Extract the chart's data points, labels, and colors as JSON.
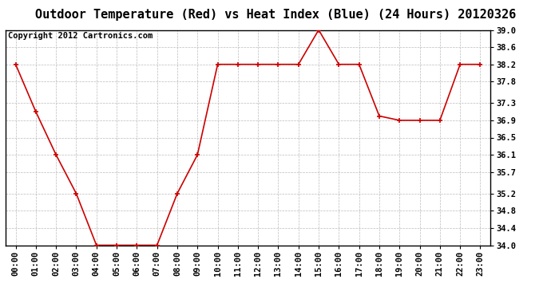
{
  "title": "Outdoor Temperature (Red) vs Heat Index (Blue) (24 Hours) 20120326",
  "copyright": "Copyright 2012 Cartronics.com",
  "x_labels": [
    "00:00",
    "01:00",
    "02:00",
    "03:00",
    "04:00",
    "05:00",
    "06:00",
    "07:00",
    "08:00",
    "09:00",
    "10:00",
    "11:00",
    "12:00",
    "13:00",
    "14:00",
    "15:00",
    "16:00",
    "17:00",
    "18:00",
    "19:00",
    "20:00",
    "21:00",
    "22:00",
    "23:00"
  ],
  "red_data": [
    38.2,
    37.1,
    36.1,
    35.2,
    34.0,
    34.0,
    34.0,
    34.0,
    35.2,
    36.1,
    38.2,
    38.2,
    38.2,
    38.2,
    38.2,
    39.0,
    38.2,
    38.2,
    37.0,
    36.9,
    36.9,
    36.9,
    38.2,
    38.2
  ],
  "blue_data": [],
  "ylim_min": 34.0,
  "ylim_max": 39.0,
  "yticks": [
    34.0,
    34.4,
    34.8,
    35.2,
    35.7,
    36.1,
    36.5,
    36.9,
    37.3,
    37.8,
    38.2,
    38.6,
    39.0
  ],
  "background_color": "#ffffff",
  "grid_color": "#bbbbbb",
  "red_color": "#cc0000",
  "blue_color": "#0000cc",
  "title_fontsize": 11,
  "copyright_fontsize": 7.5,
  "tick_fontsize": 7.5
}
